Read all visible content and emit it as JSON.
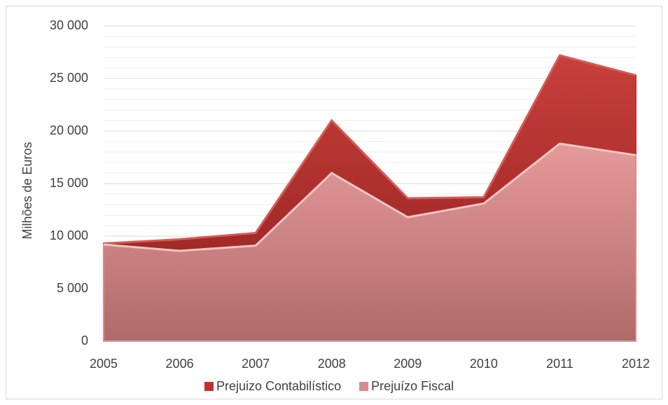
{
  "chart_data": {
    "type": "area",
    "y_label": "Milhões de Euros",
    "categories": [
      "2005",
      "2006",
      "2007",
      "2008",
      "2009",
      "2010",
      "2011",
      "2012"
    ],
    "series": [
      {
        "name": "Prejuizo Contabilístico",
        "color": "#c0322f",
        "values": [
          9300,
          9700,
          10300,
          21000,
          13600,
          13700,
          27200,
          25300
        ]
      },
      {
        "name": "Prejuízo Fiscal",
        "color": "#d98b8b",
        "values": [
          9200,
          8600,
          9100,
          16000,
          11800,
          13100,
          18800,
          17700
        ]
      }
    ],
    "ylim": [
      0,
      30000
    ],
    "yticks": [
      0,
      {
        "value": 5000,
        "label": "5 000"
      },
      {
        "value": 10000,
        "label": "10 000"
      },
      {
        "value": 15000,
        "label": "15 000"
      },
      {
        "value": 20000,
        "label": "20 000"
      },
      {
        "value": 25000,
        "label": "25 000"
      },
      {
        "value": 30000,
        "label": "30 000"
      }
    ],
    "grid": true,
    "minor_grid": true,
    "legend": "bottom"
  }
}
